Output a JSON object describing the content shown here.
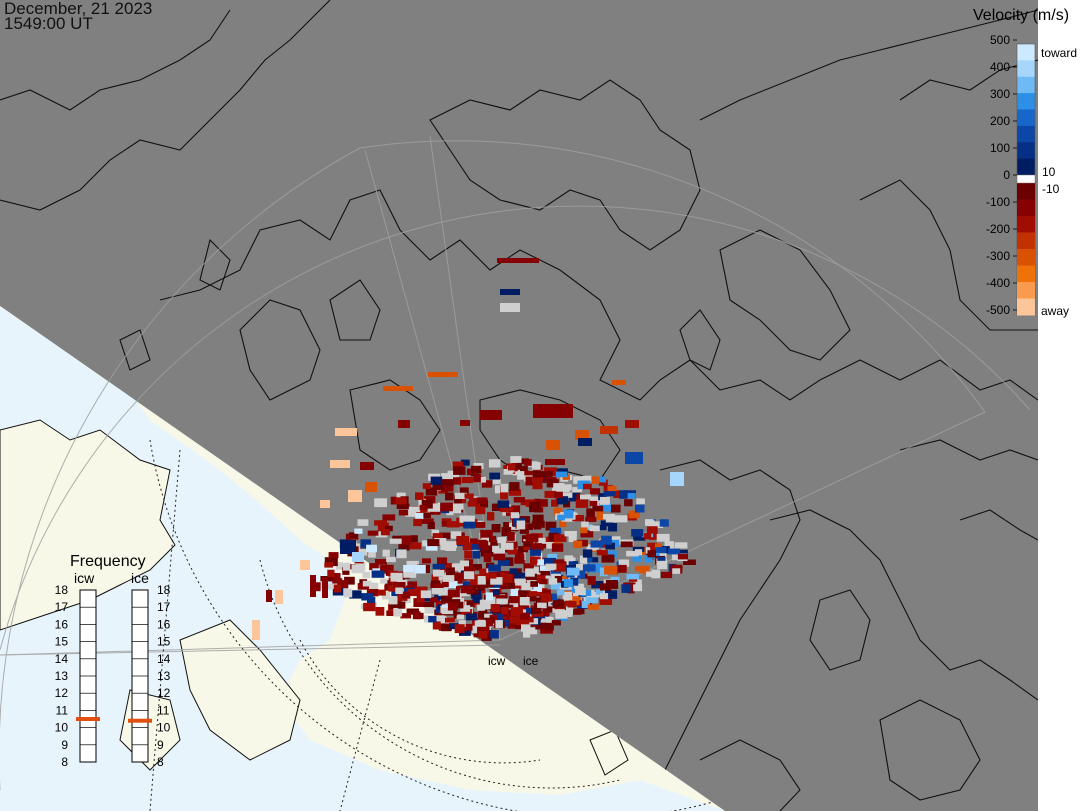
{
  "title": {
    "date": "December, 21 2023",
    "time": "1549:00 UT"
  },
  "colors": {
    "night": "#808080",
    "day_land": "#f8f8e8",
    "day_ocean": "#e8f4fc",
    "coast": "#111111",
    "grid": "#a0a0a0",
    "ground_scatter": "#cfcfcf"
  },
  "velocity_scale": {
    "title": "Velocity (m/s)",
    "ticks": [
      "500",
      "400",
      "300",
      "200",
      "100",
      "0",
      "-100",
      "-200",
      "-300",
      "-400",
      "-500"
    ],
    "toward_label": "toward",
    "away_label": "away",
    "pos_threshold": "10",
    "neg_threshold": "-10",
    "toward_colors": [
      "#cde9ff",
      "#a6d6fb",
      "#6fbaf5",
      "#2e8fe6",
      "#1866c9",
      "#0c47a8",
      "#062f86",
      "#001c62"
    ],
    "away_colors": [
      "#6a0000",
      "#860202",
      "#a10d03",
      "#c13200",
      "#d95102",
      "#ee7208",
      "#f99a4e",
      "#fdc59a"
    ]
  },
  "frequency_panel": {
    "title": "Frequency",
    "radars": [
      {
        "code": "icw",
        "value": 10.5,
        "marker_color": "#e05010"
      },
      {
        "code": "ice",
        "value": 10.4,
        "marker_color": "#e05010"
      }
    ],
    "ticks": [
      "18",
      "17",
      "16",
      "15",
      "14",
      "13",
      "12",
      "11",
      "10",
      "9",
      "8"
    ]
  },
  "radar_sites": [
    {
      "code": "icw",
      "label": "icw"
    },
    {
      "code": "ice",
      "label": "ice"
    }
  ]
}
